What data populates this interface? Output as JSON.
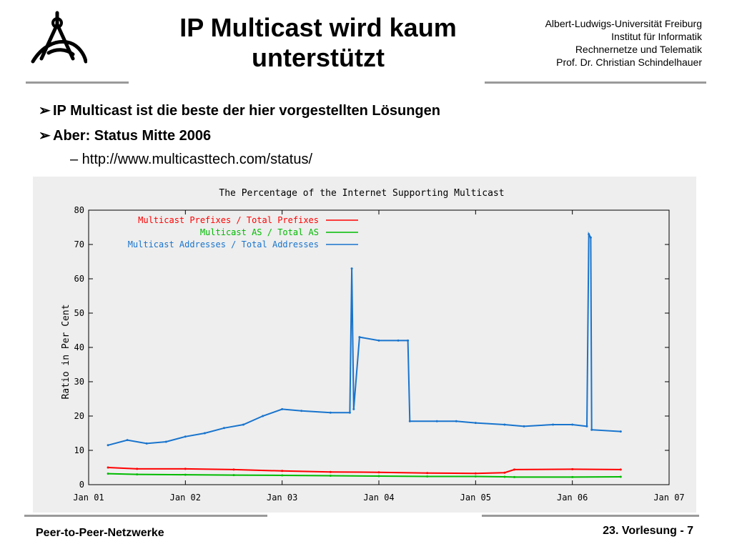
{
  "slide": {
    "title_line1": "IP Multicast wird kaum",
    "title_line2": "unterstützt",
    "institution": [
      "Albert-Ludwigs-Universität Freiburg",
      "Institut für Informatik",
      "Rechnernetze und Telematik",
      "Prof. Dr. Christian Schindelhauer"
    ],
    "bullets": [
      "IP Multicast ist die beste der hier vorgestellten Lösungen",
      "Aber: Status Mitte 2006"
    ],
    "subbullet": "– http://www.multicasttech.com/status/",
    "footer_left": "Peer-to-Peer-Netzwerke",
    "footer_right": "23. Vorlesung - 7",
    "bullet_icon": "arrow-head-icon",
    "logo_icon": "university-logo-icon"
  },
  "chart_data": {
    "type": "line",
    "title": "The Percentage of the Internet Supporting Multicast",
    "ylabel": "Ratio in Per Cent",
    "xlabel": "",
    "x_ticks": [
      "Jan 01",
      "Jan 02",
      "Jan 03",
      "Jan 04",
      "Jan 05",
      "Jan 06",
      "Jan 07"
    ],
    "y_ticks": [
      0,
      10,
      20,
      30,
      40,
      50,
      60,
      70,
      80
    ],
    "ylim": [
      0,
      80
    ],
    "xlim": [
      "Jan 01",
      "Jan 07"
    ],
    "legend_position": "top-left",
    "colors": {
      "background": "#eeeeee",
      "red": "#ff0000",
      "green": "#00bb00",
      "blue": "#1874cd"
    },
    "series": [
      {
        "name": "Multicast Prefixes / Total Prefixes",
        "color": "#ff0000",
        "points": [
          [
            2001.2,
            5
          ],
          [
            2001.5,
            4.6
          ],
          [
            2002.0,
            4.6
          ],
          [
            2002.5,
            4.4
          ],
          [
            2003.0,
            4
          ],
          [
            2003.5,
            3.7
          ],
          [
            2004.0,
            3.6
          ],
          [
            2004.5,
            3.4
          ],
          [
            2005.0,
            3.3
          ],
          [
            2005.3,
            3.5
          ],
          [
            2005.4,
            4.4
          ],
          [
            2006.0,
            4.5
          ],
          [
            2006.5,
            4.4
          ]
        ]
      },
      {
        "name": "Multicast AS / Total AS",
        "color": "#00bb00",
        "points": [
          [
            2001.2,
            3.2
          ],
          [
            2001.5,
            3.0
          ],
          [
            2002.0,
            2.9
          ],
          [
            2002.5,
            2.8
          ],
          [
            2003.0,
            2.7
          ],
          [
            2003.5,
            2.6
          ],
          [
            2004.0,
            2.5
          ],
          [
            2004.5,
            2.4
          ],
          [
            2005.0,
            2.4
          ],
          [
            2005.3,
            2.3
          ],
          [
            2005.4,
            2.2
          ],
          [
            2006.0,
            2.2
          ],
          [
            2006.5,
            2.3
          ]
        ]
      },
      {
        "name": "Multicast Addresses / Total Addresses",
        "color": "#1874cd",
        "points": [
          [
            2001.2,
            11.5
          ],
          [
            2001.4,
            13
          ],
          [
            2001.6,
            12
          ],
          [
            2001.8,
            12.5
          ],
          [
            2002.0,
            14
          ],
          [
            2002.2,
            15
          ],
          [
            2002.4,
            16.5
          ],
          [
            2002.6,
            17.5
          ],
          [
            2002.8,
            20
          ],
          [
            2003.0,
            22
          ],
          [
            2003.2,
            21.5
          ],
          [
            2003.5,
            21
          ],
          [
            2003.7,
            21
          ],
          [
            2003.72,
            63
          ],
          [
            2003.74,
            22
          ],
          [
            2003.8,
            43
          ],
          [
            2004.0,
            42
          ],
          [
            2004.2,
            42
          ],
          [
            2004.3,
            42
          ],
          [
            2004.32,
            18.5
          ],
          [
            2004.6,
            18.5
          ],
          [
            2004.8,
            18.5
          ],
          [
            2005.0,
            18
          ],
          [
            2005.3,
            17.5
          ],
          [
            2005.5,
            17
          ],
          [
            2005.8,
            17.5
          ],
          [
            2006.0,
            17.5
          ],
          [
            2006.15,
            17
          ],
          [
            2006.17,
            73
          ],
          [
            2006.19,
            72
          ],
          [
            2006.2,
            16
          ],
          [
            2006.5,
            15.5
          ]
        ]
      }
    ]
  }
}
